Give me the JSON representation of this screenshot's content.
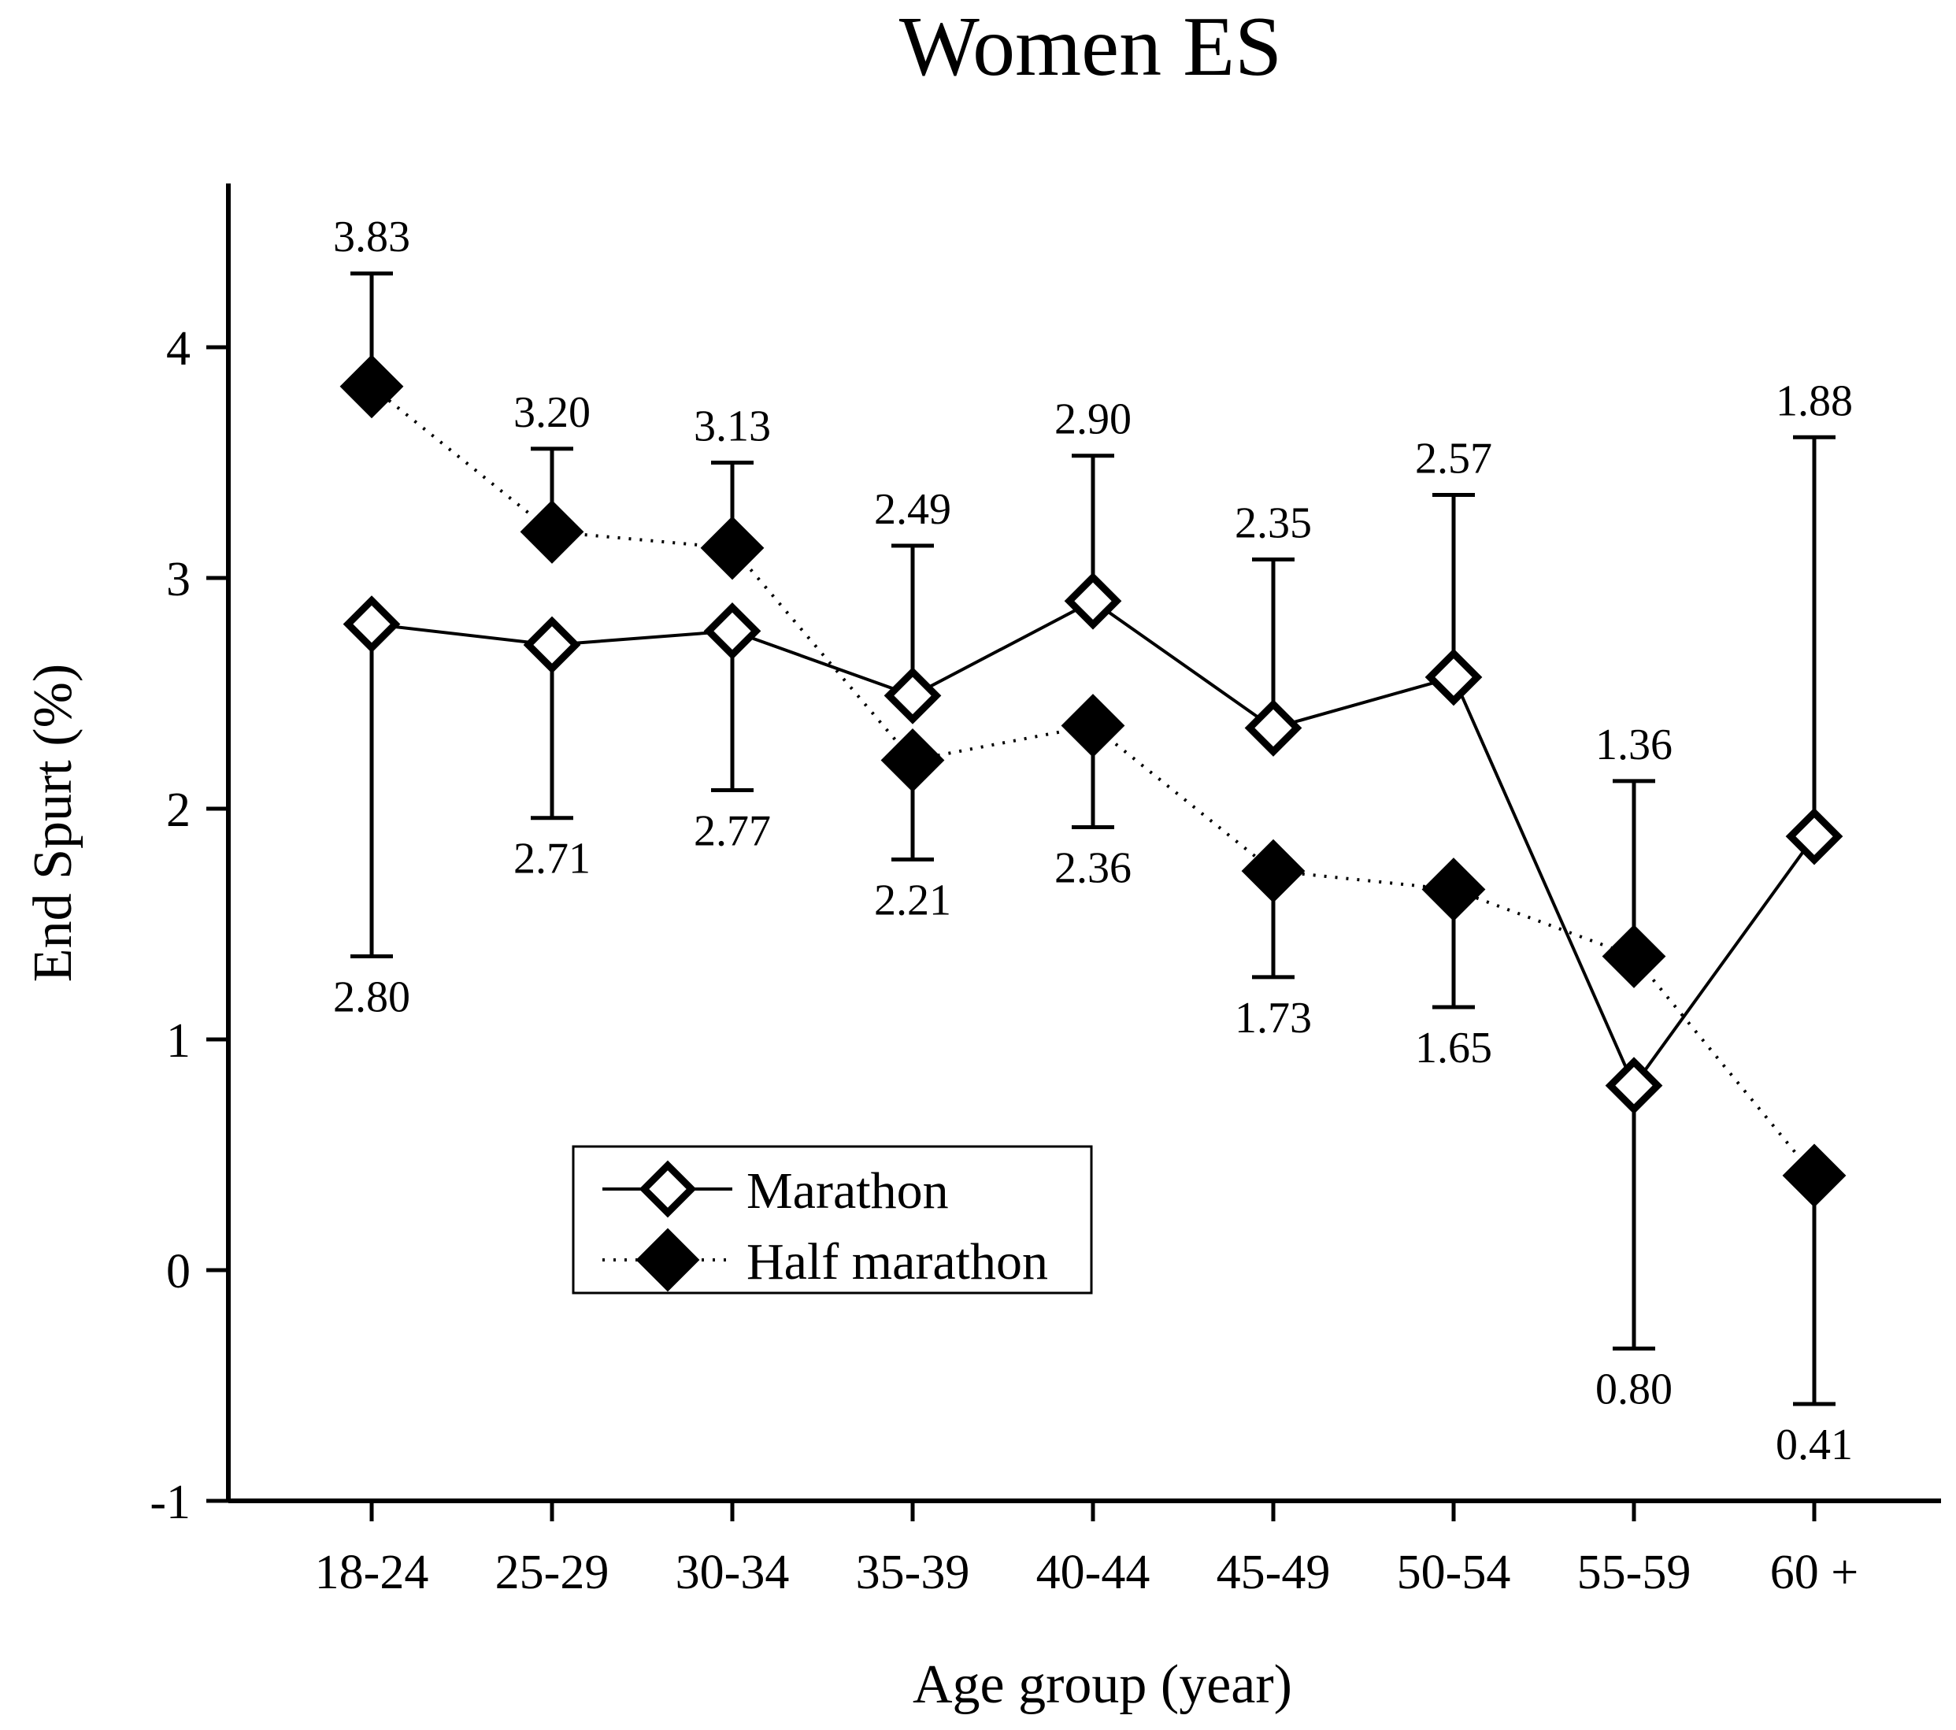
{
  "chart_data": {
    "type": "line",
    "title": "Women ES",
    "xlabel": "Age group (year)",
    "ylabel": "End Spurt (%)",
    "ylim": [
      -1,
      4.75
    ],
    "yticks": [
      -1,
      0,
      1,
      2,
      3,
      4
    ],
    "ytick_labels": [
      "-1",
      "0",
      "1",
      "2",
      "3",
      "4"
    ],
    "categories": [
      "18-24",
      "25-29",
      "30-34",
      "35-39",
      "40-44",
      "45-49",
      "50-54",
      "55-59",
      "60 +"
    ],
    "legend_position": "lower-left",
    "series": [
      {
        "name": "Marathon",
        "line_style": "solid",
        "marker": "open-diamond",
        "values": [
          2.8,
          2.71,
          2.77,
          2.49,
          2.9,
          2.35,
          2.57,
          0.8,
          1.88
        ],
        "error_upper": [
          null,
          null,
          null,
          3.14,
          3.53,
          3.08,
          3.36,
          null,
          3.61
        ],
        "error_lower": [
          1.36,
          1.96,
          2.08,
          null,
          null,
          null,
          null,
          -0.34,
          null
        ],
        "labels": [
          "2.80",
          "2.71",
          "2.77",
          "2.49",
          "2.90",
          "2.35",
          "2.57",
          "0.80",
          "1.88"
        ],
        "label_side": [
          "below",
          "below",
          "below",
          "above",
          "above",
          "above",
          "above",
          "below",
          "above"
        ]
      },
      {
        "name": "Half marathon",
        "line_style": "dotted",
        "marker": "filled-diamond",
        "values": [
          3.83,
          3.2,
          3.13,
          2.21,
          2.36,
          1.73,
          1.65,
          1.36,
          0.41
        ],
        "error_upper": [
          4.32,
          3.56,
          3.5,
          null,
          null,
          null,
          null,
          2.12,
          null
        ],
        "error_lower": [
          null,
          null,
          null,
          1.78,
          1.92,
          1.27,
          1.14,
          null,
          -0.58
        ],
        "labels": [
          "3.83",
          "3.20",
          "3.13",
          "2.21",
          "2.36",
          "1.73",
          "1.65",
          "1.36",
          "0.41"
        ],
        "label_side": [
          "above",
          "above",
          "above",
          "below",
          "below",
          "below",
          "below",
          "above",
          "below"
        ]
      }
    ]
  }
}
